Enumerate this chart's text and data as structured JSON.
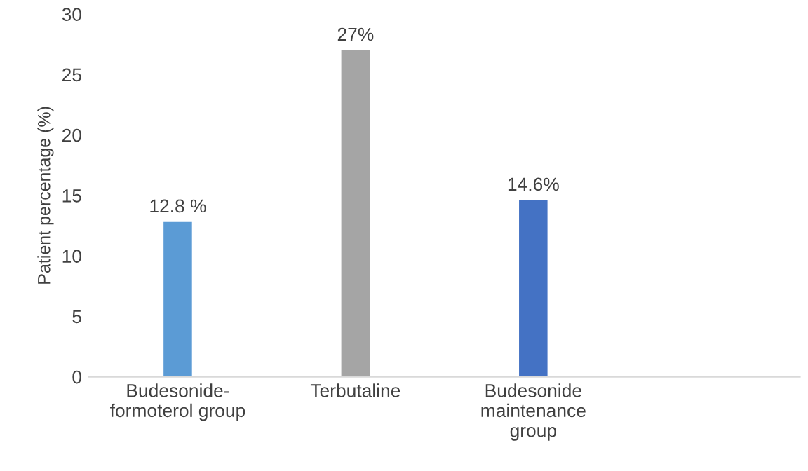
{
  "chart_data": {
    "type": "bar",
    "ylabel": "Patient percentage (%)",
    "categories": [
      "Budesonide-\nformoterol group",
      "Terbutaline",
      "Budesonide\nmaintenance\ngroup",
      null
    ],
    "values": [
      12.8,
      27,
      14.6,
      null
    ],
    "colors": [
      "#5b9bd5",
      "#a5a5a5",
      "#4472c4",
      null
    ],
    "value_labels": [
      "12.8 %",
      "27%",
      "14.6%",
      null
    ],
    "ylim": [
      0,
      30
    ],
    "yticks": [
      0,
      5,
      10,
      15,
      20,
      25,
      30
    ],
    "grid": false,
    "legend": false
  }
}
